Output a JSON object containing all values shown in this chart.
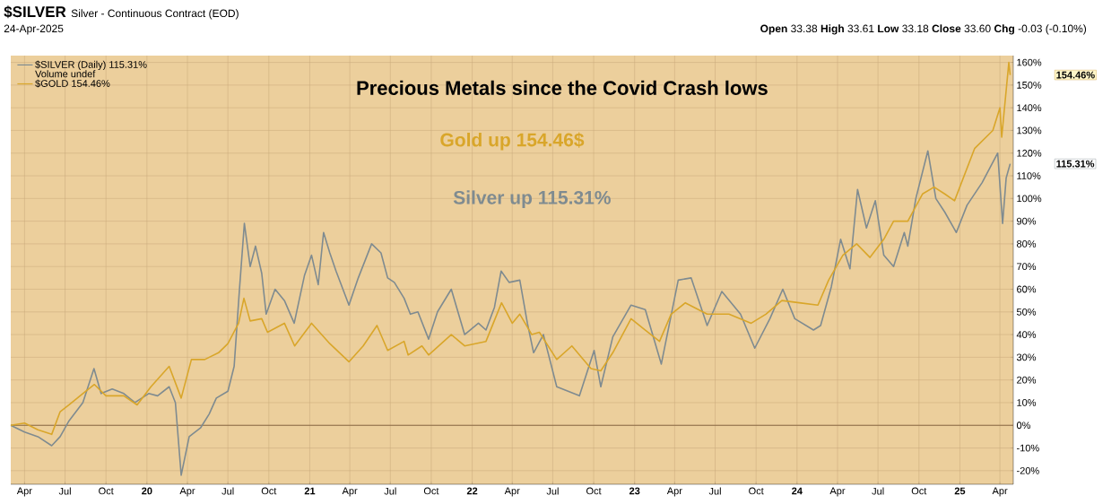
{
  "chart_data": {
    "type": "line",
    "title": "Precious Metals since the Covid Crash lows",
    "annotations": [
      "$SILVER",
      "Silver - Continuous Contract (EOD)",
      "24-Apr-2025",
      "**Open** 33.38 **High** 33.61 **Low** 33.18 **Close** 33.60 **Chg** -0.03 (-0.10%)",
      "Volume undef",
      "Gold up 154.46$",
      "Silver up 115.31%",
      "154.46%",
      "115.31%"
    ],
    "series": [
      {
        "name": "$SILVER (Daily) 115.31%",
        "color": "#7f8b90",
        "x": [
          "2019-03-01",
          "2019-04-01",
          "2019-05-01",
          "2019-06-01",
          "2019-06-20",
          "2019-07-10",
          "2019-08-10",
          "2019-09-04",
          "2019-09-20",
          "2019-10-15",
          "2019-11-10",
          "2019-12-05",
          "2020-01-05",
          "2020-01-25",
          "2020-02-20",
          "2020-03-05",
          "2020-03-18",
          "2020-04-05",
          "2020-05-01",
          "2020-05-20",
          "2020-06-05",
          "2020-07-01",
          "2020-07-15",
          "2020-07-27",
          "2020-08-07",
          "2020-08-20",
          "2020-09-01",
          "2020-09-15",
          "2020-09-25",
          "2020-10-15",
          "2020-11-05",
          "2020-11-27",
          "2020-12-20",
          "2021-01-05",
          "2021-01-20",
          "2021-02-01",
          "2021-02-15",
          "2021-03-01",
          "2021-03-30",
          "2021-04-20",
          "2021-05-20",
          "2021-06-10",
          "2021-06-25",
          "2021-07-10",
          "2021-08-01",
          "2021-08-15",
          "2021-09-01",
          "2021-09-25",
          "2021-10-15",
          "2021-11-15",
          "2021-12-15",
          "2022-01-15",
          "2022-02-01",
          "2022-02-20",
          "2022-03-07",
          "2022-03-25",
          "2022-04-18",
          "2022-05-05",
          "2022-05-19",
          "2022-06-10",
          "2022-07-10",
          "2022-08-30",
          "2022-10-02",
          "2022-10-17",
          "2022-11-13",
          "2022-12-24",
          "2023-01-25",
          "2023-03-02",
          "2023-04-09",
          "2023-05-08",
          "2023-06-13",
          "2023-07-16",
          "2023-08-27",
          "2023-09-28",
          "2023-11-01",
          "2023-11-30",
          "2023-12-27",
          "2024-02-07",
          "2024-02-23",
          "2024-03-18",
          "2024-04-08",
          "2024-04-29",
          "2024-05-16",
          "2024-06-05",
          "2024-06-25",
          "2024-07-14",
          "2024-08-05",
          "2024-08-29",
          "2024-09-06",
          "2024-09-24",
          "2024-10-21",
          "2024-11-08",
          "2024-11-28",
          "2024-12-24",
          "2025-01-17",
          "2025-02-20",
          "2025-03-27",
          "2025-04-07",
          "2025-04-15",
          "2025-04-24"
        ],
        "values": [
          0,
          -3,
          -5,
          -9,
          -5,
          2,
          10,
          25,
          14,
          16,
          14,
          10,
          14,
          13,
          17,
          10,
          -22,
          -5,
          -1,
          5,
          12,
          15,
          26,
          60,
          89,
          70,
          79,
          67,
          49,
          60,
          55,
          45,
          66,
          75,
          62,
          85,
          76,
          68,
          53,
          65,
          80,
          76,
          65,
          63,
          56,
          49,
          50,
          38,
          50,
          60,
          40,
          45,
          42,
          52,
          68,
          63,
          64,
          45,
          32,
          40,
          17,
          13,
          33,
          17,
          39,
          53,
          51,
          27,
          64,
          65,
          44,
          59,
          49,
          34,
          47,
          60,
          47,
          42,
          44,
          61,
          82,
          69,
          104,
          87,
          99,
          75,
          70,
          85,
          79,
          100,
          121,
          100,
          94,
          85,
          97,
          107,
          120,
          89,
          109,
          115.31
        ]
      },
      {
        "name": "$GOLD 154.46%",
        "color": "#d9a62a",
        "x": [
          "2019-03-01",
          "2019-04-01",
          "2019-05-01",
          "2019-06-01",
          "2019-06-20",
          "2019-07-10",
          "2019-08-10",
          "2019-09-05",
          "2019-10-01",
          "2019-11-10",
          "2019-12-10",
          "2020-01-10",
          "2020-02-20",
          "2020-03-18",
          "2020-04-10",
          "2020-05-10",
          "2020-06-10",
          "2020-07-01",
          "2020-07-25",
          "2020-08-06",
          "2020-08-20",
          "2020-09-15",
          "2020-09-28",
          "2020-11-05",
          "2020-11-28",
          "2021-01-05",
          "2021-02-15",
          "2021-03-30",
          "2021-05-01",
          "2021-06-01",
          "2021-06-25",
          "2021-08-01",
          "2021-08-10",
          "2021-09-10",
          "2021-09-25",
          "2021-11-15",
          "2021-12-15",
          "2022-02-01",
          "2022-03-08",
          "2022-04-01",
          "2022-04-18",
          "2022-05-15",
          "2022-06-01",
          "2022-07-10",
          "2022-08-13",
          "2022-09-25",
          "2022-10-17",
          "2022-11-13",
          "2022-12-24",
          "2023-01-25",
          "2023-02-26",
          "2023-03-24",
          "2023-04-25",
          "2023-06-13",
          "2023-08-01",
          "2023-09-20",
          "2023-10-23",
          "2023-11-28",
          "2024-01-06",
          "2024-02-17",
          "2024-03-12",
          "2024-04-13",
          "2024-05-14",
          "2024-06-13",
          "2024-07-14",
          "2024-08-05",
          "2024-09-06",
          "2024-10-09",
          "2024-11-04",
          "2024-11-28",
          "2024-12-20",
          "2025-02-03",
          "2025-03-16",
          "2025-04-01",
          "2025-04-05",
          "2025-04-21",
          "2025-04-24"
        ],
        "values": [
          0,
          1,
          -2,
          -4,
          6,
          9,
          14,
          18,
          13,
          13,
          9,
          17,
          26,
          12,
          29,
          29,
          32,
          36,
          45,
          56,
          46,
          47,
          41,
          45,
          35,
          45,
          36,
          28,
          35,
          44,
          33,
          37,
          31,
          35,
          31,
          40,
          35,
          37,
          54,
          45,
          49,
          40,
          41,
          29,
          35,
          25,
          24,
          32,
          47,
          42,
          37,
          49,
          54,
          49,
          49,
          45,
          49,
          55,
          54,
          53,
          64,
          75,
          80,
          74,
          82,
          90,
          90,
          102,
          105,
          102,
          99,
          122,
          130,
          140,
          127,
          160,
          154.46
        ]
      }
    ],
    "xlim": [
      "2019-03-01",
      "2025-05-01"
    ],
    "xticks": [
      {
        "value": "2019-04",
        "label": "Apr"
      },
      {
        "value": "2019-07",
        "label": "Jul"
      },
      {
        "value": "2019-10",
        "label": "Oct"
      },
      {
        "value": "2020-01",
        "label": "20"
      },
      {
        "value": "2020-04",
        "label": "Apr"
      },
      {
        "value": "2020-07",
        "label": "Jul"
      },
      {
        "value": "2020-10",
        "label": "Oct"
      },
      {
        "value": "2021-01",
        "label": "21"
      },
      {
        "value": "2021-04",
        "label": "Apr"
      },
      {
        "value": "2021-07",
        "label": "Jul"
      },
      {
        "value": "2021-10",
        "label": "Oct"
      },
      {
        "value": "2022-01",
        "label": "22"
      },
      {
        "value": "2022-04",
        "label": "Apr"
      },
      {
        "value": "2022-07",
        "label": "Jul"
      },
      {
        "value": "2022-10",
        "label": "Oct"
      },
      {
        "value": "2023-01",
        "label": "23"
      },
      {
        "value": "2023-04",
        "label": "Apr"
      },
      {
        "value": "2023-07",
        "label": "Jul"
      },
      {
        "value": "2023-10",
        "label": "Oct"
      },
      {
        "value": "2024-01",
        "label": "24"
      },
      {
        "value": "2024-04",
        "label": "Apr"
      },
      {
        "value": "2024-07",
        "label": "Jul"
      },
      {
        "value": "2024-10",
        "label": "Oct"
      },
      {
        "value": "2025-01",
        "label": "25"
      },
      {
        "value": "2025-04",
        "label": "Apr"
      }
    ],
    "ylim": [
      -26,
      163
    ],
    "yticks": [
      {
        "value": -20,
        "label": "-20%"
      },
      {
        "value": -10,
        "label": "-10%"
      },
      {
        "value": 0,
        "label": "0%"
      },
      {
        "value": 10,
        "label": "10%"
      },
      {
        "value": 20,
        "label": "20%"
      },
      {
        "value": 30,
        "label": "30%"
      },
      {
        "value": 40,
        "label": "40%"
      },
      {
        "value": 50,
        "label": "50%"
      },
      {
        "value": 60,
        "label": "60%"
      },
      {
        "value": 70,
        "label": "70%"
      },
      {
        "value": 80,
        "label": "80%"
      },
      {
        "value": 90,
        "label": "90%"
      },
      {
        "value": 100,
        "label": "100%"
      },
      {
        "value": 110,
        "label": "110%"
      },
      {
        "value": 120,
        "label": "120%"
      },
      {
        "value": 130,
        "label": "130%"
      },
      {
        "value": 140,
        "label": "140%"
      },
      {
        "value": 150,
        "label": "150%"
      },
      {
        "value": 160,
        "label": "160%"
      }
    ],
    "ref_lines": [
      {
        "axis": "y",
        "value": 0,
        "color": "#8b6a45"
      }
    ],
    "grid": true,
    "legend": "top left"
  }
}
